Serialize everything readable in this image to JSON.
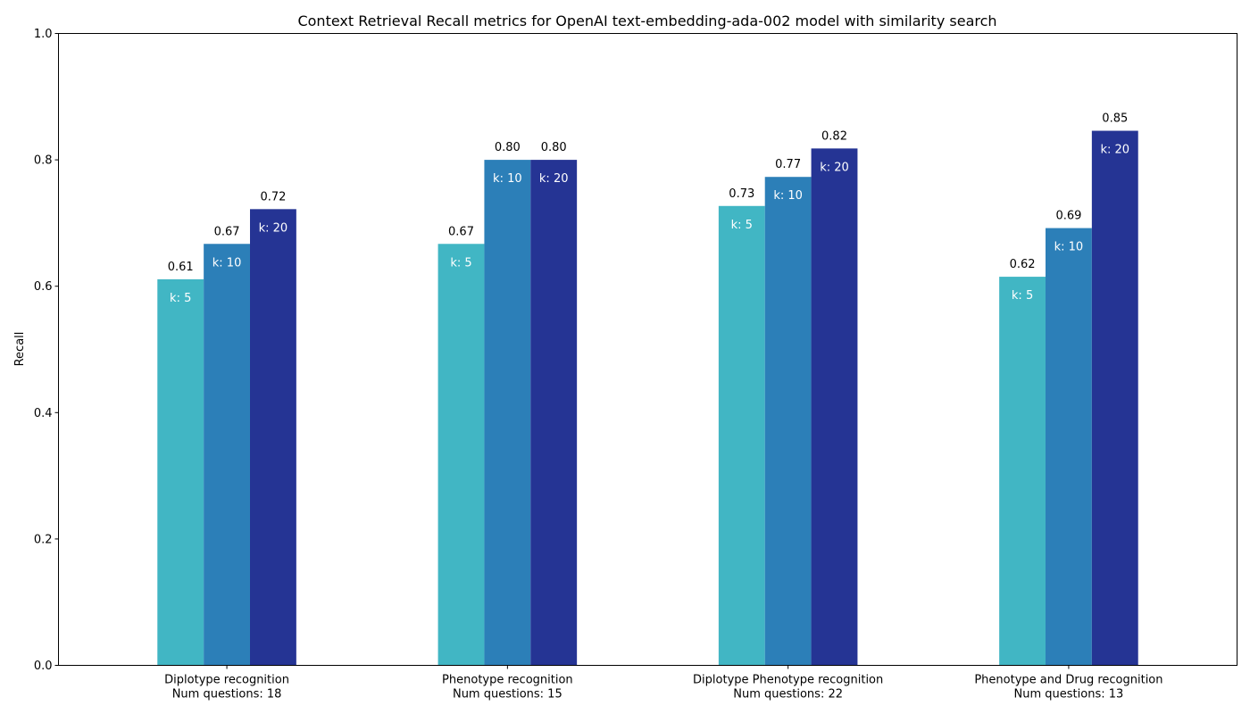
{
  "chart_data": {
    "type": "bar",
    "title": "Context Retrieval Recall metrics for OpenAI text-embedding-ada-002 model with similarity search",
    "xlabel": "",
    "ylabel": "Recall",
    "ylim": [
      0,
      1.0
    ],
    "yticks": [
      "0.0",
      "0.2",
      "0.4",
      "0.6",
      "0.8",
      "1.0"
    ],
    "grid": false,
    "categories": [
      {
        "name": "Diplotype recognition",
        "sub": "Num questions: 18"
      },
      {
        "name": "Phenotype recognition",
        "sub": "Num questions: 15"
      },
      {
        "name": "Diplotype Phenotype recognition",
        "sub": "Num questions: 22"
      },
      {
        "name": "Phenotype and Drug recognition",
        "sub": "Num questions: 13"
      }
    ],
    "series": [
      {
        "label": "k: 5",
        "color": "#41b6c4",
        "values": [
          0.611,
          0.667,
          0.727,
          0.615
        ],
        "labels": [
          "0.61",
          "0.67",
          "0.73",
          "0.62"
        ]
      },
      {
        "label": "k: 10",
        "color": "#2c7fb8",
        "values": [
          0.667,
          0.8,
          0.773,
          0.692
        ],
        "labels": [
          "0.67",
          "0.80",
          "0.77",
          "0.69"
        ]
      },
      {
        "label": "k: 20",
        "color": "#253494",
        "values": [
          0.722,
          0.8,
          0.818,
          0.846
        ],
        "labels": [
          "0.72",
          "0.80",
          "0.82",
          "0.85"
        ]
      }
    ]
  }
}
